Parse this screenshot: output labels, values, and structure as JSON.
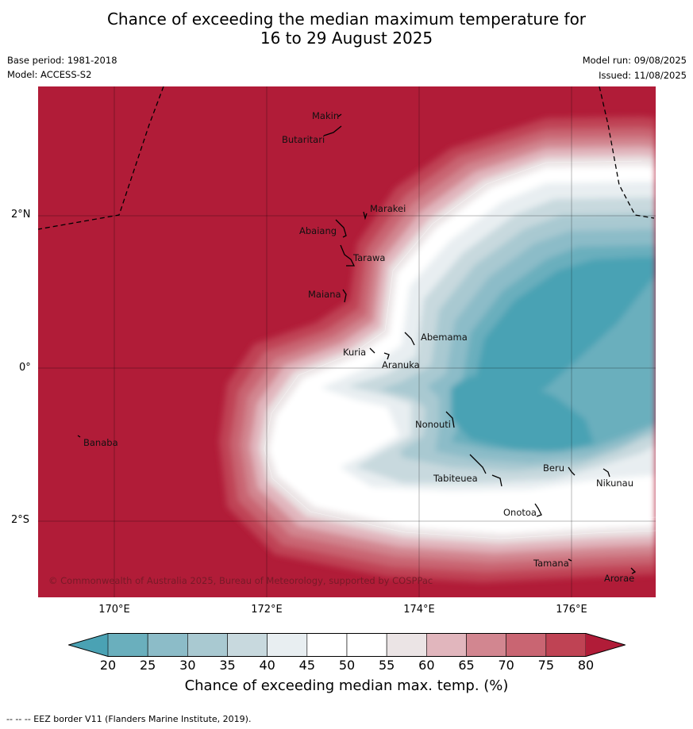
{
  "title_line1": "Chance of exceeding the median maximum temperature for",
  "title_line2": "16 to 29 August 2025",
  "base_period": "Base period: 1981-2018",
  "model": "Model: ACCESS-S2",
  "model_run": "Model run: 09/08/2025",
  "issued": "Issued: 11/08/2025",
  "copyright": "© Commonwealth of Australia 2025, Bureau of Meteorology, supported by COSPPac",
  "places": [
    "Makin",
    "Butaritari",
    "Marakei",
    "Abaiang",
    "Tarawa",
    "Maiana",
    "Abemama",
    "Kuria",
    "Aranuka",
    "Banaba",
    "Nonouti",
    "Tabiteuea",
    "Beru",
    "Nikunau",
    "Onotoa",
    "Tamana",
    "Arorae"
  ],
  "lat_labels": [
    "2°N",
    "0°",
    "2°S"
  ],
  "lon_labels": [
    "170°E",
    "172°E",
    "174°E",
    "176°E"
  ],
  "colorbar": {
    "ticks": [
      "20",
      "25",
      "30",
      "35",
      "40",
      "45",
      "50",
      "55",
      "60",
      "65",
      "70",
      "75",
      "80"
    ],
    "colors": [
      "#4aa2b4",
      "#6aafbd",
      "#8cbcc8",
      "#a9c9d1",
      "#c8d9de",
      "#e8eef1",
      "#ffffff",
      "#ffffff",
      "#ebe4e5",
      "#e1b6bd",
      "#d28690",
      "#c96572",
      "#bf4354",
      "#b11c38"
    ],
    "label": "Chance of exceeding median max. temp. (%)"
  },
  "footnote": "--  --  -- EEZ border V11 (Flanders Marine Institute, 2019)."
}
